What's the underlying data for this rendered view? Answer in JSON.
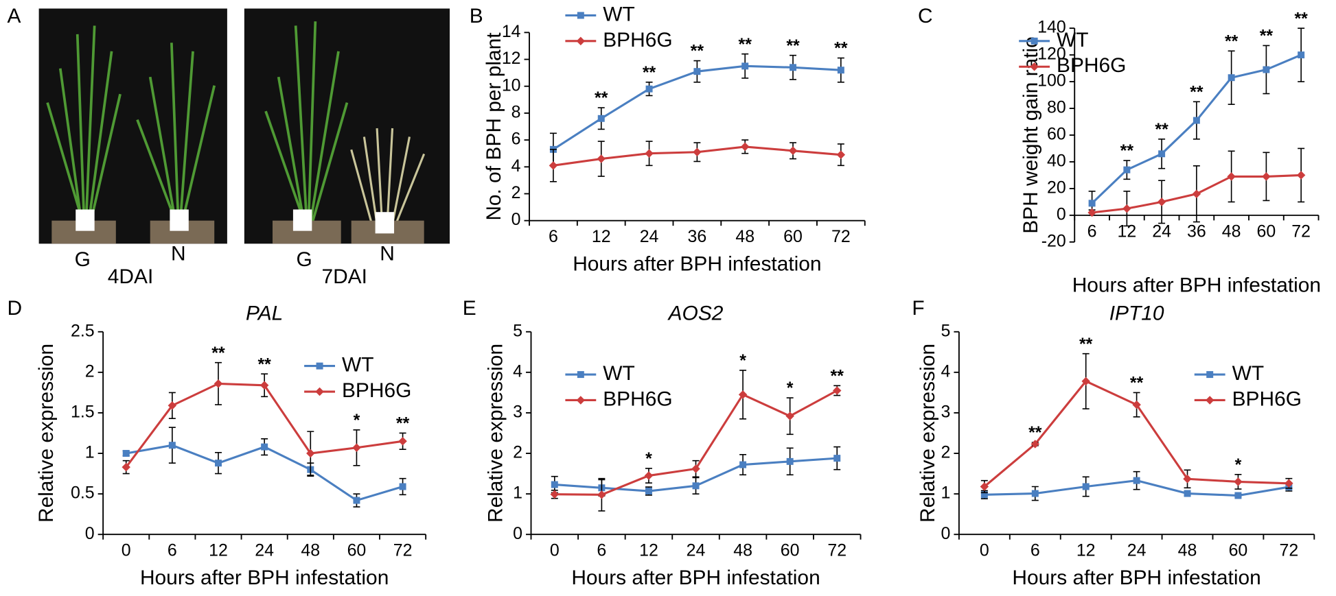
{
  "photo_panel": {
    "label": "A",
    "photos": [
      {
        "plants": [
          "G",
          "N"
        ],
        "caption": "4DAI"
      },
      {
        "plants": [
          "G",
          "N"
        ],
        "caption": "7DAI"
      }
    ]
  },
  "chart_data": [
    {
      "type": "line",
      "label": "B",
      "ylabel": "No. of BPH per plant",
      "xlabel": "Hours after BPH infestation",
      "categories": [
        "6",
        "12",
        "24",
        "36",
        "48",
        "60",
        "72"
      ],
      "ylim": [
        0,
        14
      ],
      "yticks": [
        0,
        2,
        4,
        6,
        8,
        10,
        12,
        14
      ],
      "legend": "upper left",
      "series": [
        {
          "name": "WT",
          "color": "#4a7fc1",
          "marker": "square",
          "values": [
            5.3,
            7.6,
            9.8,
            11.1,
            11.5,
            11.4,
            11.2
          ],
          "errors": [
            1.2,
            0.8,
            0.5,
            0.8,
            0.9,
            0.9,
            0.9
          ]
        },
        {
          "name": "BPH6G",
          "color": "#cc3d3d",
          "marker": "diamond",
          "values": [
            4.1,
            4.6,
            5.0,
            5.1,
            5.5,
            5.2,
            4.9
          ],
          "errors": [
            1.2,
            1.3,
            0.9,
            0.7,
            0.5,
            0.6,
            0.8
          ]
        }
      ],
      "significance": [
        null,
        "**",
        "**",
        "**",
        "**",
        "**",
        "**"
      ]
    },
    {
      "type": "line",
      "label": "C",
      "ylabel": "BPH weight gain ratio",
      "xlabel": "Hours after BPH infestation",
      "categories": [
        "6",
        "12",
        "24",
        "36",
        "48",
        "60",
        "72"
      ],
      "ylim": [
        -20,
        140
      ],
      "yticks": [
        -20,
        0,
        20,
        40,
        60,
        80,
        100,
        120,
        140
      ],
      "legend": "upper left",
      "series": [
        {
          "name": "WT",
          "color": "#4a7fc1",
          "marker": "square",
          "values": [
            9,
            34,
            46,
            71,
            103,
            109,
            120
          ],
          "errors": [
            9,
            7,
            11,
            14,
            20,
            18,
            20
          ]
        },
        {
          "name": "BPH6G",
          "color": "#cc3d3d",
          "marker": "diamond",
          "values": [
            2,
            5,
            10,
            16,
            29,
            29,
            30
          ],
          "errors": [
            2,
            13,
            16,
            21,
            19,
            18,
            20
          ]
        }
      ],
      "significance": [
        null,
        "**",
        "**",
        "**",
        "**",
        "**",
        "**"
      ]
    },
    {
      "type": "line",
      "label": "D",
      "title": "PAL",
      "ylabel": "Relative expression",
      "xlabel": "Hours after BPH infestation",
      "categories": [
        "0",
        "6",
        "12",
        "24",
        "48",
        "60",
        "72"
      ],
      "ylim": [
        0,
        2.5
      ],
      "yticks": [
        0,
        0.5,
        1,
        1.5,
        2,
        2.5
      ],
      "legend": "center right",
      "series": [
        {
          "name": "WT",
          "color": "#4a7fc1",
          "marker": "square",
          "values": [
            1.0,
            1.1,
            0.88,
            1.08,
            0.8,
            0.42,
            0.59
          ],
          "errors": [
            0.03,
            0.22,
            0.13,
            0.1,
            0.08,
            0.08,
            0.1
          ]
        },
        {
          "name": "BPH6G",
          "color": "#cc3d3d",
          "marker": "diamond",
          "values": [
            0.83,
            1.59,
            1.86,
            1.84,
            1.0,
            1.07,
            1.15
          ],
          "errors": [
            0.08,
            0.16,
            0.26,
            0.14,
            0.27,
            0.22,
            0.1
          ]
        }
      ],
      "significance": [
        null,
        null,
        "**",
        "**",
        null,
        "*",
        "**"
      ]
    },
    {
      "type": "line",
      "label": "E",
      "title": "AOS2",
      "ylabel": "Relative expression",
      "xlabel": "Hours after BPH infestation",
      "categories": [
        "0",
        "6",
        "12",
        "24",
        "48",
        "60",
        "72"
      ],
      "ylim": [
        0,
        5
      ],
      "yticks": [
        0,
        1,
        2,
        3,
        4,
        5
      ],
      "legend": "upper left",
      "series": [
        {
          "name": "WT",
          "color": "#4a7fc1",
          "marker": "square",
          "values": [
            1.23,
            1.15,
            1.07,
            1.2,
            1.72,
            1.8,
            1.88
          ],
          "errors": [
            0.2,
            0.2,
            0.1,
            0.2,
            0.25,
            0.33,
            0.28
          ]
        },
        {
          "name": "BPH6G",
          "color": "#cc3d3d",
          "marker": "diamond",
          "values": [
            0.99,
            0.98,
            1.45,
            1.62,
            3.45,
            2.92,
            3.55
          ],
          "errors": [
            0.1,
            0.4,
            0.18,
            0.2,
            0.6,
            0.45,
            0.12
          ]
        }
      ],
      "significance": [
        null,
        null,
        "*",
        null,
        "*",
        "*",
        "**"
      ]
    },
    {
      "type": "line",
      "label": "F",
      "title": "IPT10",
      "ylabel": "Relative expression",
      "xlabel": "Hours after BPH infestation",
      "categories": [
        "0",
        "6",
        "12",
        "24",
        "48",
        "60",
        "72"
      ],
      "ylim": [
        0,
        5
      ],
      "yticks": [
        0,
        1,
        2,
        3,
        4,
        5
      ],
      "legend": "center right",
      "series": [
        {
          "name": "WT",
          "color": "#4a7fc1",
          "marker": "square",
          "values": [
            0.98,
            1.01,
            1.18,
            1.33,
            1.01,
            0.96,
            1.17
          ],
          "errors": [
            0.1,
            0.17,
            0.24,
            0.22,
            0.05,
            0.03,
            0.1
          ]
        },
        {
          "name": "BPH6G",
          "color": "#cc3d3d",
          "marker": "diamond",
          "values": [
            1.18,
            2.23,
            3.78,
            3.2,
            1.37,
            1.3,
            1.26
          ],
          "errors": [
            0.15,
            0.04,
            0.68,
            0.3,
            0.22,
            0.18,
            0.12
          ]
        }
      ],
      "significance": [
        null,
        "**",
        "**",
        "**",
        null,
        "*",
        null
      ]
    }
  ]
}
